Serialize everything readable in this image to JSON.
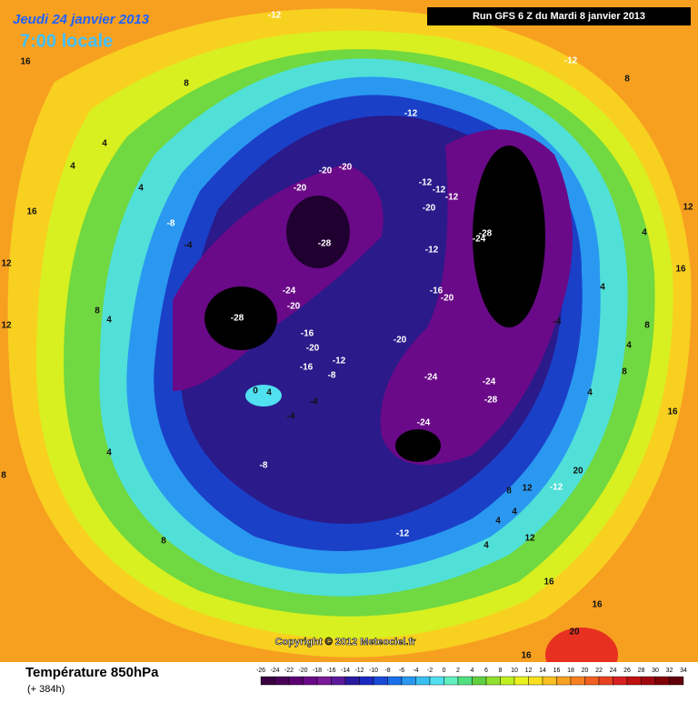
{
  "header": {
    "date": "Jeudi 24 janvier 2013",
    "time": "7:00 locale",
    "run": "Run GFS 6 Z du Mardi 8 janvier 2013"
  },
  "map": {
    "copyright": "Copyright © 2012 Meteociel.fr",
    "labels": [
      -12,
      16,
      8,
      -12,
      8,
      4,
      4,
      -12,
      -20,
      -20,
      -20,
      -12,
      -12,
      -12,
      -20,
      4,
      -8,
      -4,
      16,
      12,
      4,
      -28,
      -24,
      -28,
      -12,
      16,
      12,
      4,
      -24,
      -20,
      -16,
      -20,
      -28,
      8,
      4,
      12,
      8,
      -4,
      -16,
      -20,
      -20,
      4,
      8,
      -12,
      -16,
      -8,
      -24,
      -24,
      0,
      4,
      -28,
      -4,
      4,
      -4,
      16,
      -24,
      4,
      -8,
      20,
      -12,
      12,
      8,
      4,
      4,
      -12,
      8,
      4,
      12,
      16,
      16,
      20,
      16,
      8
    ]
  },
  "footer": {
    "variable": "Température 850hPa",
    "lead": "(+ 384h)",
    "scale": [
      -26,
      -24,
      -22,
      -20,
      -18,
      -16,
      -14,
      -12,
      -10,
      -8,
      -6,
      -4,
      -2,
      0,
      2,
      4,
      6,
      8,
      10,
      12,
      14,
      16,
      18,
      20,
      22,
      24,
      26,
      28,
      30,
      32,
      34
    ],
    "colors": [
      "#3a0040",
      "#4a0058",
      "#5a0070",
      "#6a0a88",
      "#7a1a98",
      "#5a1a9a",
      "#2a1aa0",
      "#1a2ac0",
      "#1a4ad8",
      "#1a70e8",
      "#2a98f0",
      "#3ac0f0",
      "#50e0f0",
      "#60f0c0",
      "#50e080",
      "#60d040",
      "#90e030",
      "#c0f020",
      "#e8f020",
      "#f8e020",
      "#f8c020",
      "#f8a020",
      "#f88020",
      "#f06020",
      "#e84020",
      "#d82020",
      "#c01010",
      "#a00810",
      "#800008",
      "#600008"
    ]
  }
}
